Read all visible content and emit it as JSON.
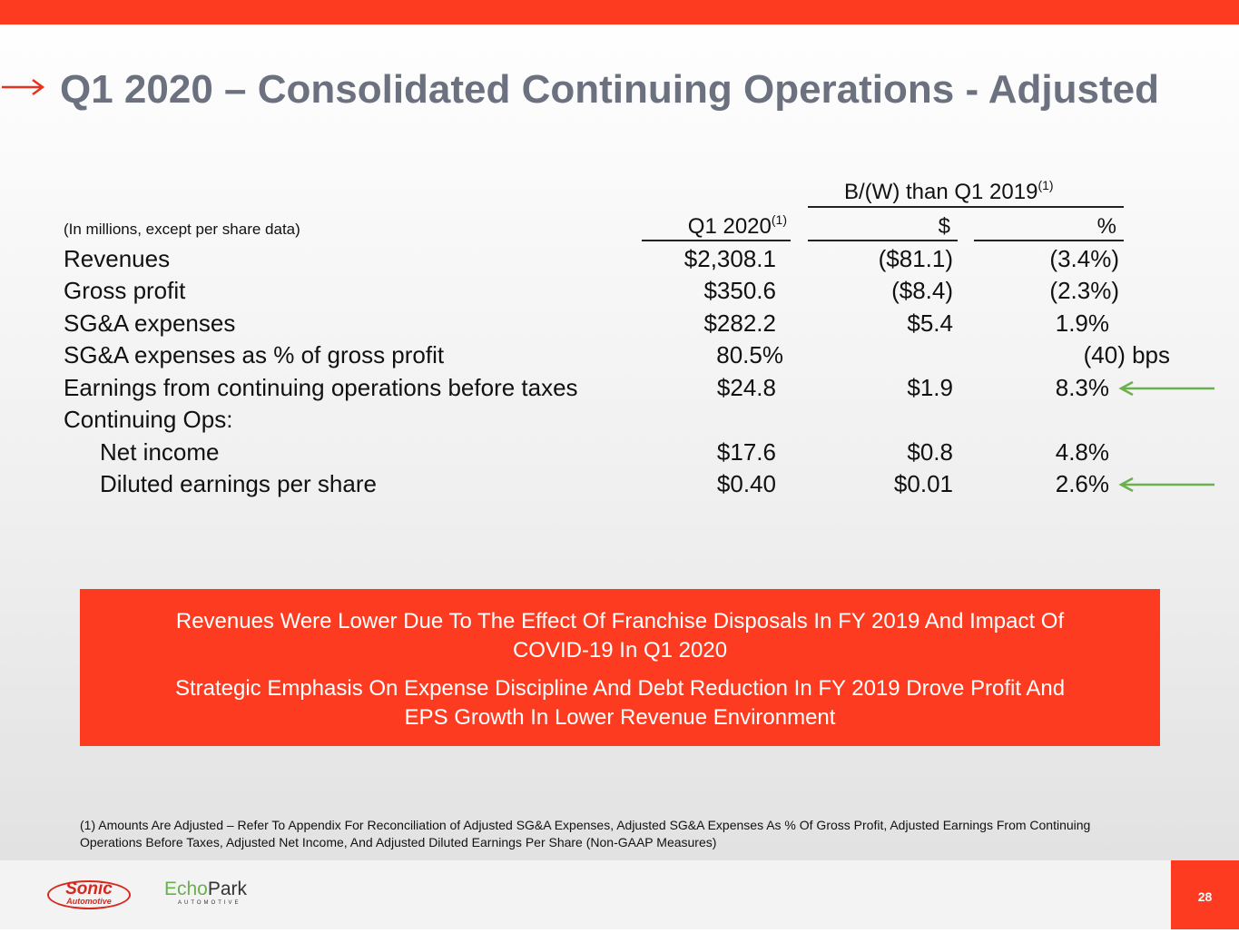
{
  "title": "Q1 2020 – Consolidated Continuing Operations - Adjusted",
  "table": {
    "group_header": "B/(W) than Q1 2019",
    "group_sup": "(1)",
    "units_note": "(In millions, except per share data)",
    "col1": "Q1 2020",
    "col1_sup": "(1)",
    "col2": "$",
    "col3": "%",
    "rows": [
      {
        "label": "Revenues",
        "v1": "$2,308.1",
        "v2": "($81.1)",
        "v3": "(3.4%)"
      },
      {
        "label": "Gross profit",
        "v1": "$350.6",
        "v2": "($8.4)",
        "v3": "(2.3%)"
      },
      {
        "label": "SG&A expenses",
        "v1": "$282.2",
        "v2": "$5.4",
        "v3": "1.9%"
      },
      {
        "label": "SG&A expenses as % of gross profit",
        "v1": "80.5%",
        "v2": "",
        "v3": "(40) bps"
      },
      {
        "label": "Earnings from continuing operations before taxes",
        "v1": "$24.8",
        "v2": "$1.9",
        "v3": "8.3%"
      },
      {
        "label": "Continuing Ops:",
        "v1": "",
        "v2": "",
        "v3": ""
      },
      {
        "label": "Net income",
        "v1": "$17.6",
        "v2": "$0.8",
        "v3": "4.8%"
      },
      {
        "label": "Diluted earnings per share",
        "v1": "$0.40",
        "v2": "$0.01",
        "v3": "2.6%"
      }
    ]
  },
  "callout": {
    "line1": "Revenues Were Lower Due To The Effect Of Franchise Disposals In FY 2019 And Impact Of COVID-19 In Q1 2020",
    "line2": "Strategic Emphasis On Expense Discipline And Debt Reduction In FY 2019 Drove Profit And EPS Growth In Lower Revenue Environment"
  },
  "footnote": "(1) Amounts Are Adjusted – Refer To Appendix For Reconciliation of Adjusted SG&A Expenses, Adjusted SG&A Expenses As % Of Gross Profit, Adjusted Earnings From Continuing Operations Before Taxes, Adjusted Net Income, And Adjusted Diluted Earnings Per Share (Non-GAAP Measures)",
  "logos": {
    "sonic": "Sonic",
    "sonic_sub": "Automotive",
    "echo1": "Echo",
    "echo2": "Park",
    "echo_sub": "AUTOMOTIVE"
  },
  "page_number": "28",
  "colors": {
    "accent": "#fd3b20",
    "title": "#6c7180",
    "green_arrow": "#6ab04c"
  }
}
